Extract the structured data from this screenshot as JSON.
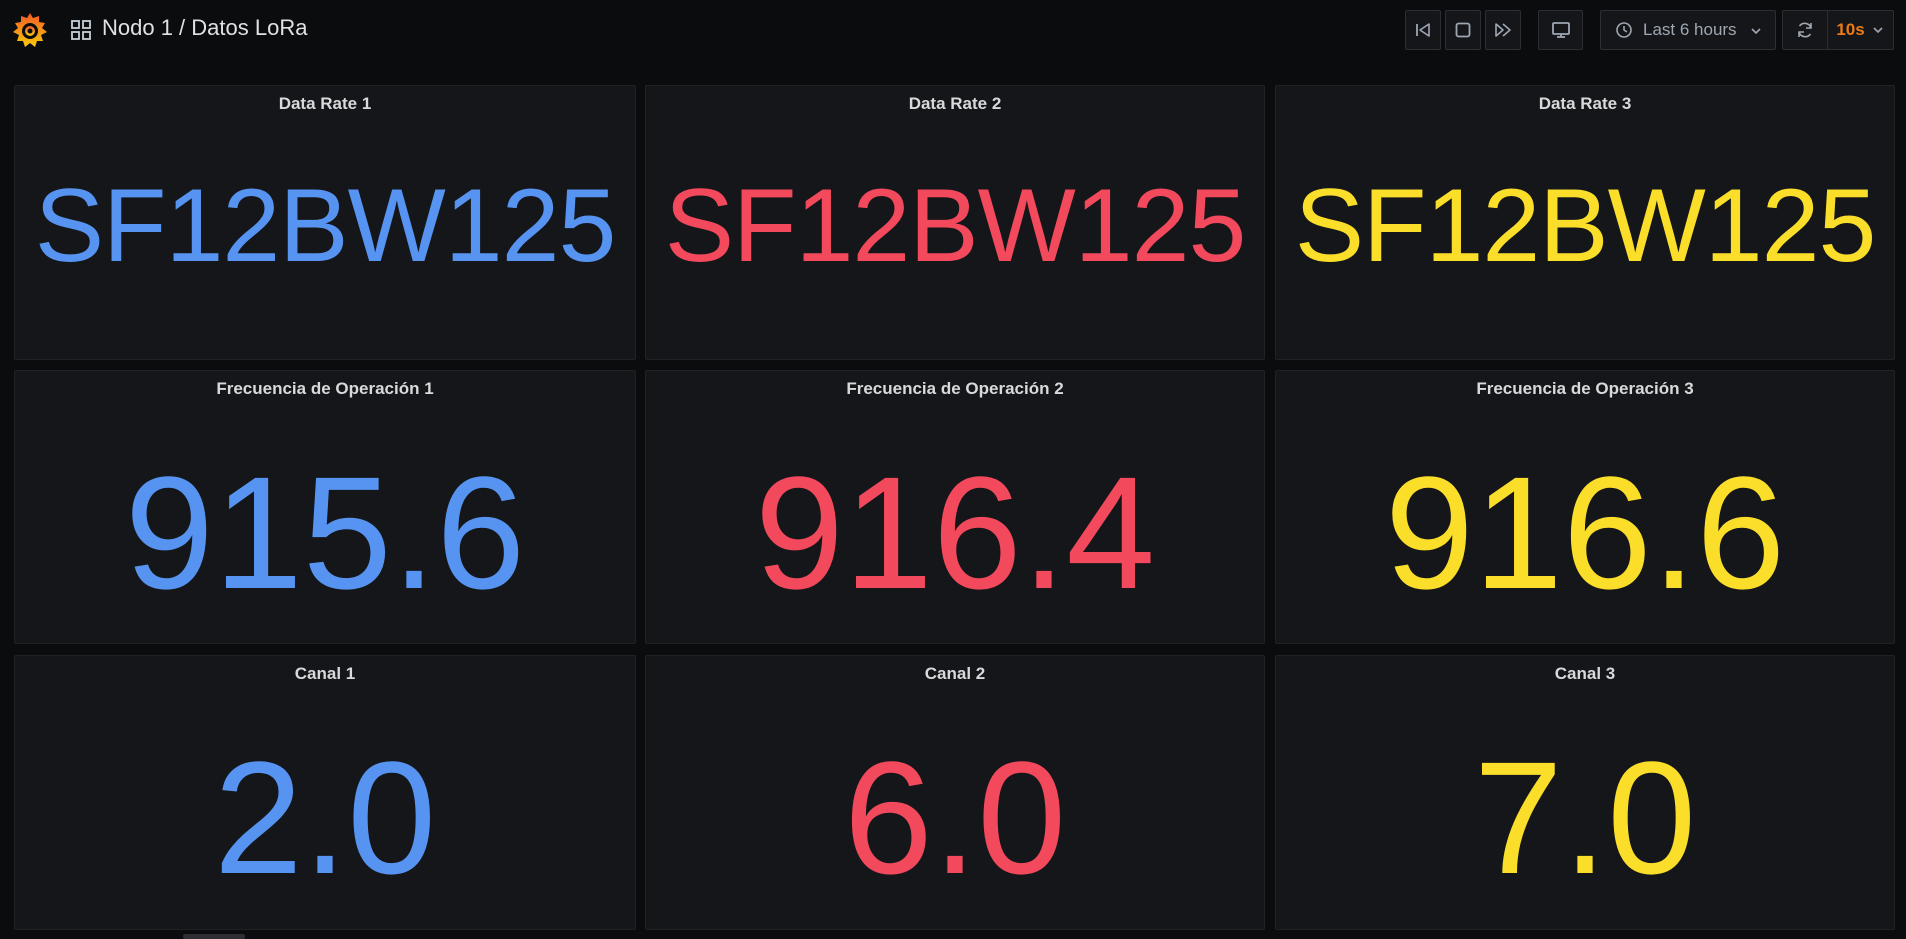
{
  "header": {
    "breadcrumb": "Nodo 1 / Datos LoRa",
    "time_range": "Last 6 hours",
    "refresh_interval": "10s",
    "icons": [
      "grafana-logo-icon",
      "dashboard-grid-icon",
      "time-back-icon",
      "stop-icon",
      "time-forward-icon",
      "tv-mode-icon",
      "clock-icon",
      "chevron-down-icon",
      "refresh-icon"
    ]
  },
  "colors": {
    "blue": "#5794f2",
    "red": "#f2495c",
    "yellow": "#fade2a",
    "refresh_accent": "#eb7b18",
    "panel_bg": "#141619",
    "page_bg": "#0b0c0e"
  },
  "panels": {
    "rate1": {
      "title": "Data Rate 1",
      "value": "SF12BW125"
    },
    "rate2": {
      "title": "Data Rate 2",
      "value": "SF12BW125"
    },
    "rate3": {
      "title": "Data Rate 3",
      "value": "SF12BW125"
    },
    "freq1": {
      "title": "Frecuencia de Operación 1",
      "value": "915.6"
    },
    "freq2": {
      "title": "Frecuencia de Operación 2",
      "value": "916.4"
    },
    "freq3": {
      "title": "Frecuencia de Operación 3",
      "value": "916.6"
    },
    "chan1": {
      "title": "Canal 1",
      "value": "2.0"
    },
    "chan2": {
      "title": "Canal 2",
      "value": "6.0"
    },
    "chan3": {
      "title": "Canal 3",
      "value": "7.0"
    }
  }
}
